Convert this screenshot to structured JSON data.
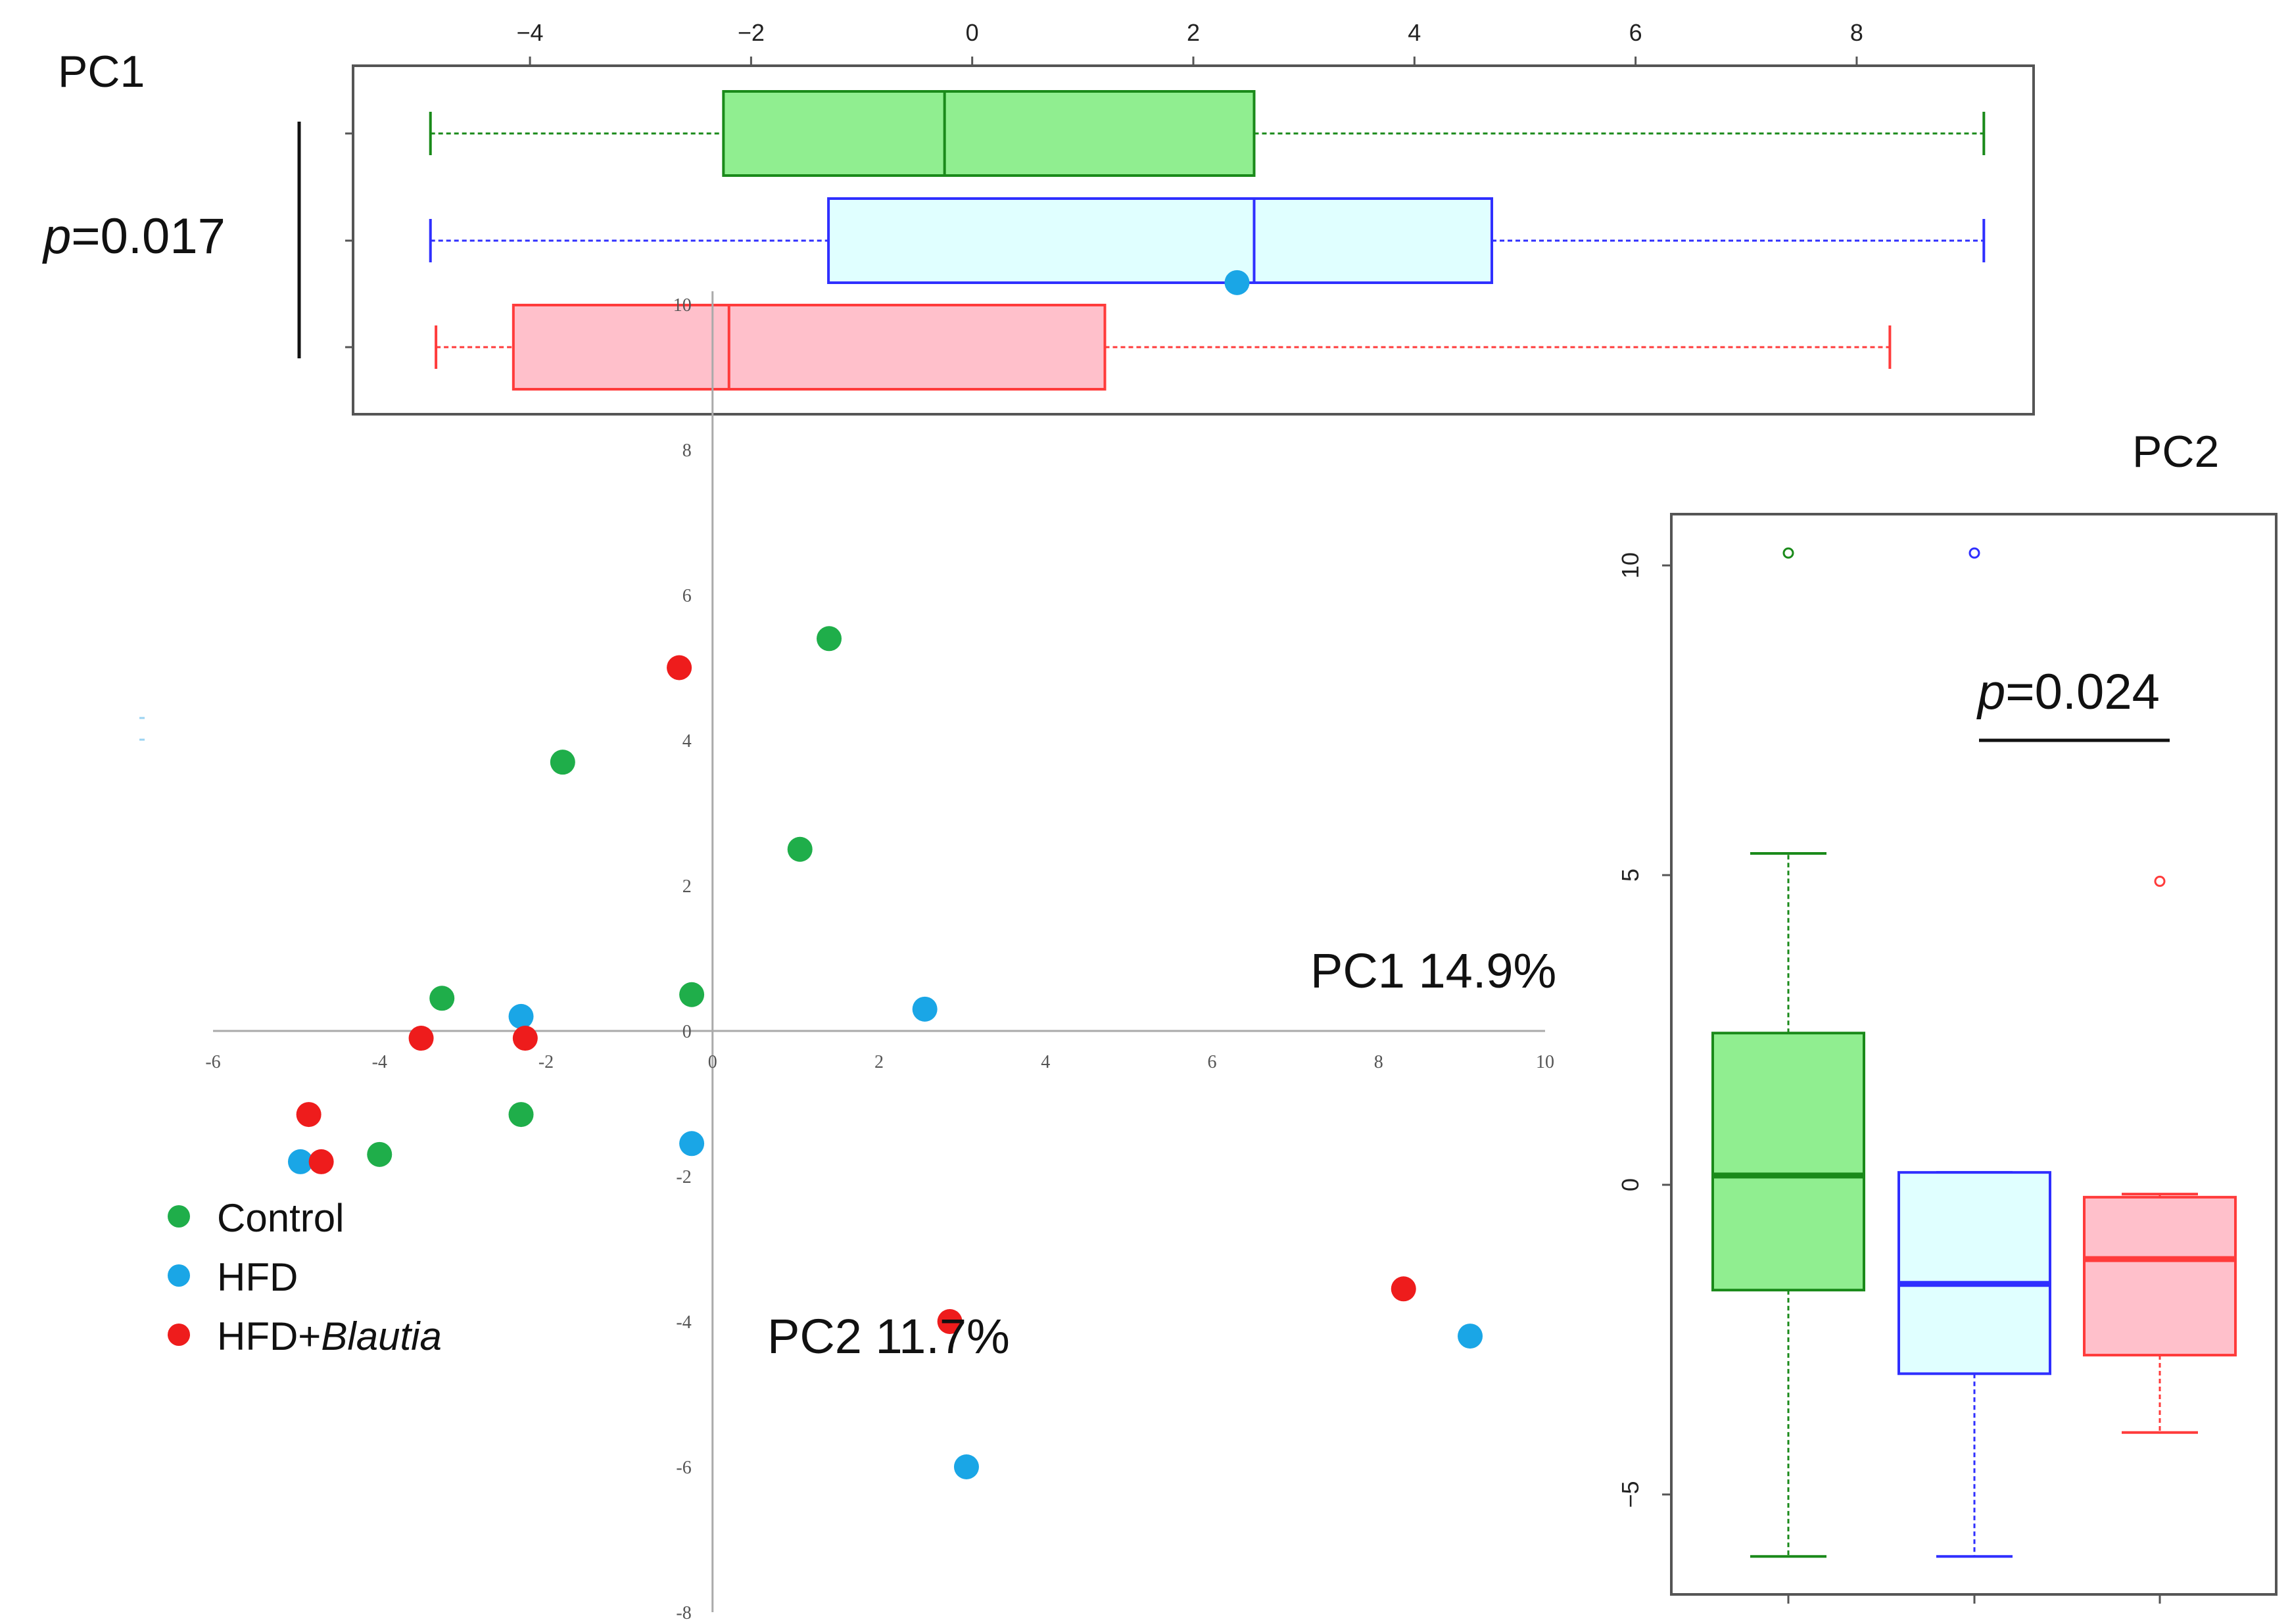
{
  "chart_data": [
    {
      "id": "pc1_boxplot",
      "type": "boxplot",
      "orientation": "horizontal",
      "title": "PC1",
      "pvalue": {
        "italic": "p",
        "rest": "=0.017"
      },
      "xlim": [
        -5.6,
        9.6
      ],
      "xticks": [
        -4,
        -2,
        0,
        2,
        4,
        6,
        8
      ],
      "xtick_labels": [
        "−4",
        "−2",
        "0",
        "2",
        "4",
        "6",
        "8"
      ],
      "groups": [
        {
          "name": "Control",
          "min": -4.9,
          "q1": -2.25,
          "median": -0.25,
          "q3": 2.55,
          "max": 9.15,
          "fill": "#90ee90",
          "stroke": "#1a8a1a"
        },
        {
          "name": "HFD",
          "min": -4.9,
          "q1": -1.3,
          "median": 2.55,
          "q3": 4.7,
          "max": 9.15,
          "fill": "#e0ffff",
          "stroke": "#2f2fff"
        },
        {
          "name": "HFD+Blautia",
          "min": -4.85,
          "q1": -4.15,
          "median": -2.2,
          "q3": 1.2,
          "max": 8.3,
          "fill": "#ffc0cb",
          "stroke": "#ff3b3b"
        }
      ]
    },
    {
      "id": "pca_scatter",
      "type": "scatter",
      "xlabel": "PC1 14.9%",
      "ylabel": "PC2 11.7%",
      "xlim": [
        -6,
        10
      ],
      "ylim": [
        -8,
        10
      ],
      "xticks": [
        -6,
        -4,
        -2,
        0,
        2,
        4,
        6,
        8,
        10
      ],
      "yticks": [
        -8,
        -6,
        -4,
        -2,
        0,
        2,
        4,
        6,
        8,
        10
      ],
      "series": [
        {
          "name": "Control",
          "color": "#1fae4a",
          "points": [
            [
              1.4,
              5.4
            ],
            [
              -1.8,
              3.7
            ],
            [
              1.05,
              2.5
            ],
            [
              -3.25,
              0.45
            ],
            [
              -0.25,
              0.5
            ],
            [
              -2.3,
              -1.15
            ],
            [
              -4.0,
              -1.7
            ]
          ]
        },
        {
          "name": "HFD",
          "color": "#1aa6e6",
          "points": [
            [
              6.3,
              10.3
            ],
            [
              2.55,
              0.3
            ],
            [
              -2.3,
              0.2
            ],
            [
              -0.25,
              -1.55
            ],
            [
              -4.95,
              -1.8
            ],
            [
              3.05,
              -6.0
            ],
            [
              9.1,
              -4.2
            ]
          ]
        },
        {
          "name": "HFD+Blautia",
          "color": "#ee1c1c",
          "points": [
            [
              -0.4,
              5.0
            ],
            [
              -3.5,
              -0.1
            ],
            [
              -2.25,
              -0.1
            ],
            [
              -4.85,
              -1.15
            ],
            [
              -4.7,
              -1.8
            ],
            [
              2.85,
              -4.0
            ],
            [
              8.3,
              -3.55
            ]
          ]
        }
      ],
      "legend": [
        {
          "label": "Control"
        },
        {
          "label": "HFD"
        },
        {
          "label_plain": "HFD+",
          "label_italic": "Blautia"
        }
      ]
    },
    {
      "id": "pc2_boxplot",
      "type": "boxplot",
      "orientation": "vertical",
      "title": "PC2",
      "pvalue": {
        "italic": "p",
        "rest": "=0.024"
      },
      "ylim": [
        -6.5,
        10.8
      ],
      "yticks": [
        -5,
        0,
        5,
        10
      ],
      "ytick_labels": [
        "−5",
        "0",
        "5",
        "10"
      ],
      "groups": [
        {
          "name": "Control",
          "min": -6.0,
          "q1": -1.7,
          "median": 0.15,
          "q3": 2.45,
          "max": 5.35,
          "outliers": [
            10.2
          ],
          "fill": "#90ee90",
          "stroke": "#1a8a1a"
        },
        {
          "name": "HFD",
          "min": -6.0,
          "q1": -3.05,
          "median": -1.6,
          "q3": 0.2,
          "max": 0.2,
          "outliers": [
            10.2
          ],
          "fill": "#e0ffff",
          "stroke": "#2f2fff"
        },
        {
          "name": "HFD+Blautia",
          "min": -4.0,
          "q1": -2.75,
          "median": -1.2,
          "q3": -0.2,
          "max": -0.15,
          "outliers": [
            4.9
          ],
          "fill": "#ffc0cb",
          "stroke": "#ff3b3b"
        }
      ]
    }
  ]
}
